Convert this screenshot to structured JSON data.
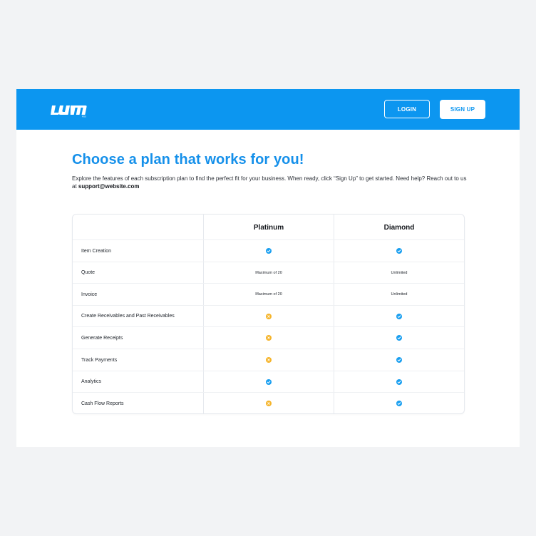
{
  "header": {
    "logo_text": "LUMI",
    "login_label": "LOGIN",
    "signup_label": "SIGN UP",
    "brand_color": "#0c96f0"
  },
  "main": {
    "title": "Choose a plan that works for you!",
    "description_line": "Explore the features of each subscription plan to find the perfect fit for your business. When ready, click “Sign Up” to get started. Need help? Reach out to us at ",
    "support_email": "support@website.com"
  },
  "table": {
    "plans": [
      "Platinum",
      "Diamond"
    ],
    "rows": [
      {
        "feature": "Item Creation",
        "platinum": "check",
        "diamond": "check"
      },
      {
        "feature": "Quote",
        "platinum": "Maximum of 20",
        "diamond": "Unlimited"
      },
      {
        "feature": "Invoice",
        "platinum": "Maximum of 20",
        "diamond": "Unlimited"
      },
      {
        "feature": "Create Receivables and Past Receivables",
        "platinum": "cross",
        "diamond": "check"
      },
      {
        "feature": "Generate Receipts",
        "platinum": "cross",
        "diamond": "check"
      },
      {
        "feature": "Track Payments",
        "platinum": "cross",
        "diamond": "check"
      },
      {
        "feature": "Analytics",
        "platinum": "check",
        "diamond": "check"
      },
      {
        "feature": "Cash Flow Reports",
        "platinum": "cross",
        "diamond": "check"
      }
    ],
    "colors": {
      "check": "#1a9ff0",
      "cross": "#f5b42a"
    }
  }
}
